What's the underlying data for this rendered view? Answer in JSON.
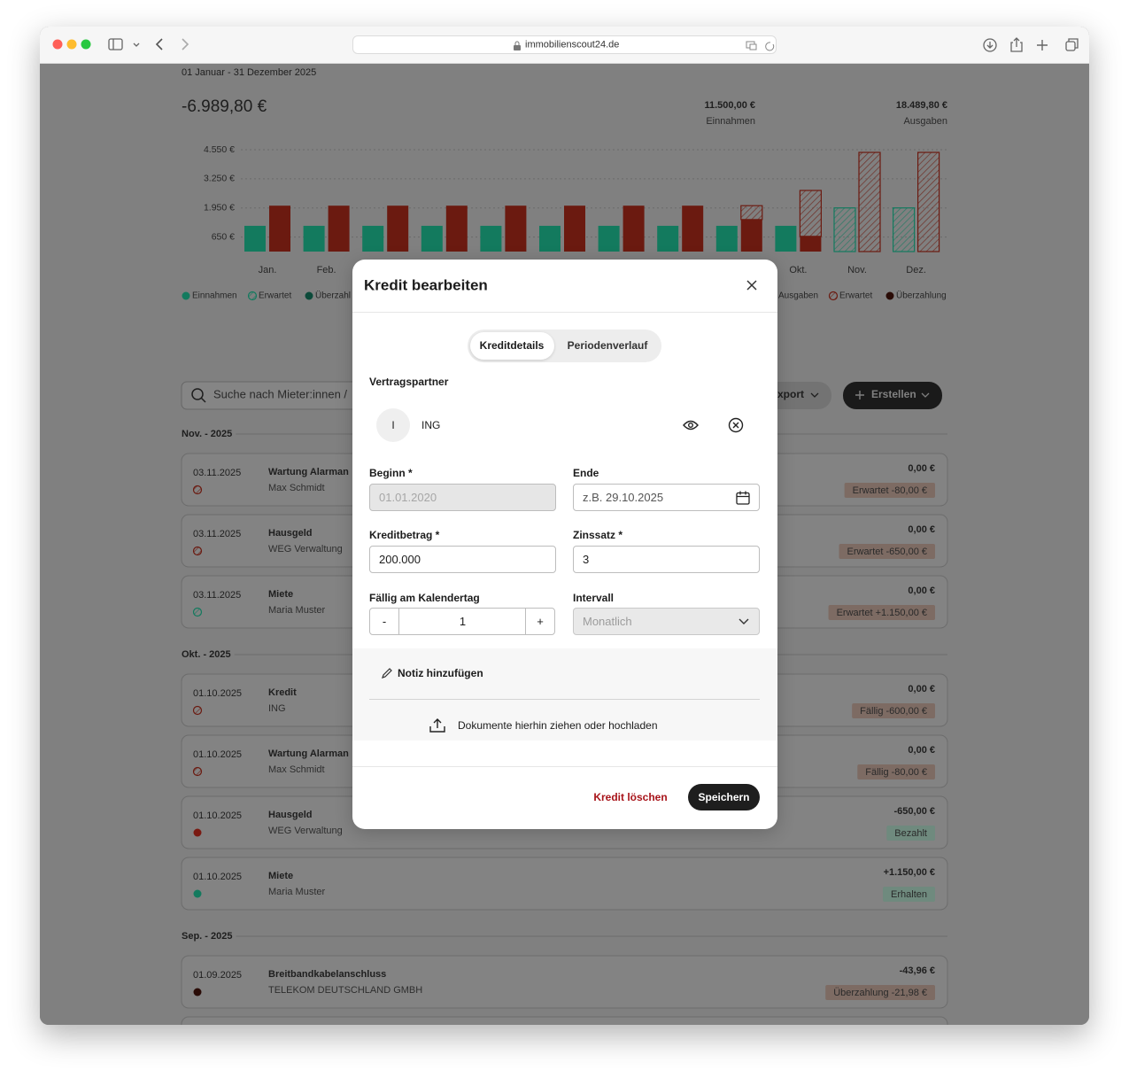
{
  "browser": {
    "url": "immobilienscout24.de"
  },
  "overview": {
    "period": "01 Januar - 31 Dezember 2025",
    "balance": "-6.989,80 €",
    "income": {
      "amount": "11.500,00 €",
      "label": "Einnahmen"
    },
    "expenses": {
      "amount": "18.489,80 €",
      "label": "Ausgaben"
    }
  },
  "chart_data": {
    "type": "bar",
    "categories": [
      "Jan.",
      "Feb.",
      null,
      null,
      null,
      null,
      null,
      null,
      null,
      "Okt.",
      "Nov.",
      "Dez."
    ],
    "series": [
      {
        "name": "Einnahmen",
        "color": "#137a5e",
        "hatched": false,
        "values": [
          1150,
          1150,
          1150,
          1150,
          1150,
          1150,
          1150,
          1150,
          1150,
          1150,
          null,
          null
        ]
      },
      {
        "name": "Erwartet",
        "color": "#137a5e",
        "hatched": true,
        "values": [
          null,
          null,
          null,
          null,
          null,
          null,
          null,
          null,
          null,
          null,
          1950,
          1950
        ]
      },
      {
        "name": "Ausgaben",
        "color": "#6b1a10",
        "hatched": false,
        "values": [
          2050,
          2050,
          2050,
          2050,
          2050,
          2050,
          2050,
          2050,
          1430,
          680,
          null,
          null
        ]
      },
      {
        "name": "Erwartet",
        "color": "#6b1a10",
        "hatched": true,
        "values": [
          null,
          null,
          null,
          null,
          null,
          null,
          null,
          null,
          620,
          2050,
          4430,
          4430
        ]
      }
    ],
    "legend_extra": [
      {
        "label": "Überzahl",
        "color": "#0c4a3a"
      },
      {
        "label": "Überzahlung",
        "color": "#2a0c07"
      }
    ],
    "ylim": [
      0,
      4550
    ],
    "yticks": [
      {
        "value": 650,
        "label": "650 €"
      },
      {
        "value": 1950,
        "label": "1.950 €"
      },
      {
        "value": 3250,
        "label": "3.250 €"
      },
      {
        "value": 4550,
        "label": "4.550 €"
      }
    ],
    "grid": true
  },
  "transactions": {
    "search": "Suche nach Mieter:innen /",
    "export": "xport",
    "create": "Erstellen",
    "groups": [
      {
        "label": "Nov. - 2025",
        "rows": [
          {
            "date": "03.11.2025",
            "title": "Wartung Alarman",
            "subtitle": "Max Schmidt",
            "amount": "0,00 €",
            "status": "Erwartet -80,00 €",
            "status_color": "#7d6b63",
            "icon_color": "#6b1a10",
            "icon_hatched": true
          },
          {
            "date": "03.11.2025",
            "title": "Hausgeld",
            "subtitle": "WEG Verwaltung",
            "amount": "0,00 €",
            "status": "Erwartet -650,00 €",
            "status_color": "#7d6b63",
            "icon_color": "#6b1a10",
            "icon_hatched": true
          },
          {
            "date": "03.11.2025",
            "title": "Miete",
            "subtitle": "Maria Muster",
            "amount": "0,00 €",
            "status": "Erwartet +1.150,00 €",
            "status_color": "#7d6b63",
            "icon_color": "#137a5e",
            "icon_hatched": true
          }
        ]
      },
      {
        "label": "Okt. - 2025",
        "rows": [
          {
            "date": "01.10.2025",
            "title": "Kredit",
            "subtitle": "ING",
            "amount": "0,00 €",
            "status": "Fällig -600,00 €",
            "status_color": "#7d6b63",
            "icon_color": "#6b1a10",
            "icon_hatched": true
          },
          {
            "date": "01.10.2025",
            "title": "Wartung Alarman",
            "subtitle": "Max Schmidt",
            "amount": "0,00 €",
            "status": "Fällig -80,00 €",
            "status_color": "#7d6b63",
            "icon_color": "#6b1a10",
            "icon_hatched": true
          },
          {
            "date": "01.10.2025",
            "title": "Hausgeld",
            "subtitle": "WEG Verwaltung",
            "amount": "-650,00 €",
            "status": "Bezahlt",
            "status_color": "#6f8a7e",
            "icon_color": "#7a1a12",
            "icon_hatched": false
          },
          {
            "date": "01.10.2025",
            "title": "Miete",
            "subtitle": "Maria Muster",
            "amount": "+1.150,00 €",
            "status": "Erhalten",
            "status_color": "#6f8a7e",
            "icon_color": "#137a5e",
            "icon_hatched": false
          }
        ]
      },
      {
        "label": "Sep. - 2025",
        "rows": [
          {
            "date": "01.09.2025",
            "title": "Breitbandkabelanschluss",
            "subtitle": "TELEKOM DEUTSCHLAND GMBH",
            "amount": "-43,96 €",
            "status": "Überzahlung -21,98 €",
            "status_color": "#7d6b63",
            "icon_color": "#2a0c07",
            "icon_hatched": false
          }
        ]
      }
    ]
  },
  "modal": {
    "title": "Kredit bearbeiten",
    "tabs": [
      "Kreditdetails",
      "Periodenverlauf"
    ],
    "partner_label": "Vertragspartner",
    "partner": {
      "initial": "I",
      "name": "ING"
    },
    "begin": {
      "label": "Beginn *",
      "value": "01.01.2020"
    },
    "end": {
      "label": "Ende",
      "placeholder": "z.B. 29.10.2025"
    },
    "amount": {
      "label": "Kreditbetrag *",
      "value": "200.000"
    },
    "rate": {
      "label": "Zinssatz *",
      "value": "3"
    },
    "due_day": {
      "label": "Fällig am Kalendertag",
      "minus": "-",
      "value": 1,
      "plus": "+"
    },
    "interval": {
      "label": "Intervall",
      "value": "Monatlich"
    },
    "note": "Notiz hinzufügen",
    "upload": "Dokumente hierhin ziehen oder hochladen",
    "delete": "Kredit löschen",
    "save": "Speichern"
  }
}
